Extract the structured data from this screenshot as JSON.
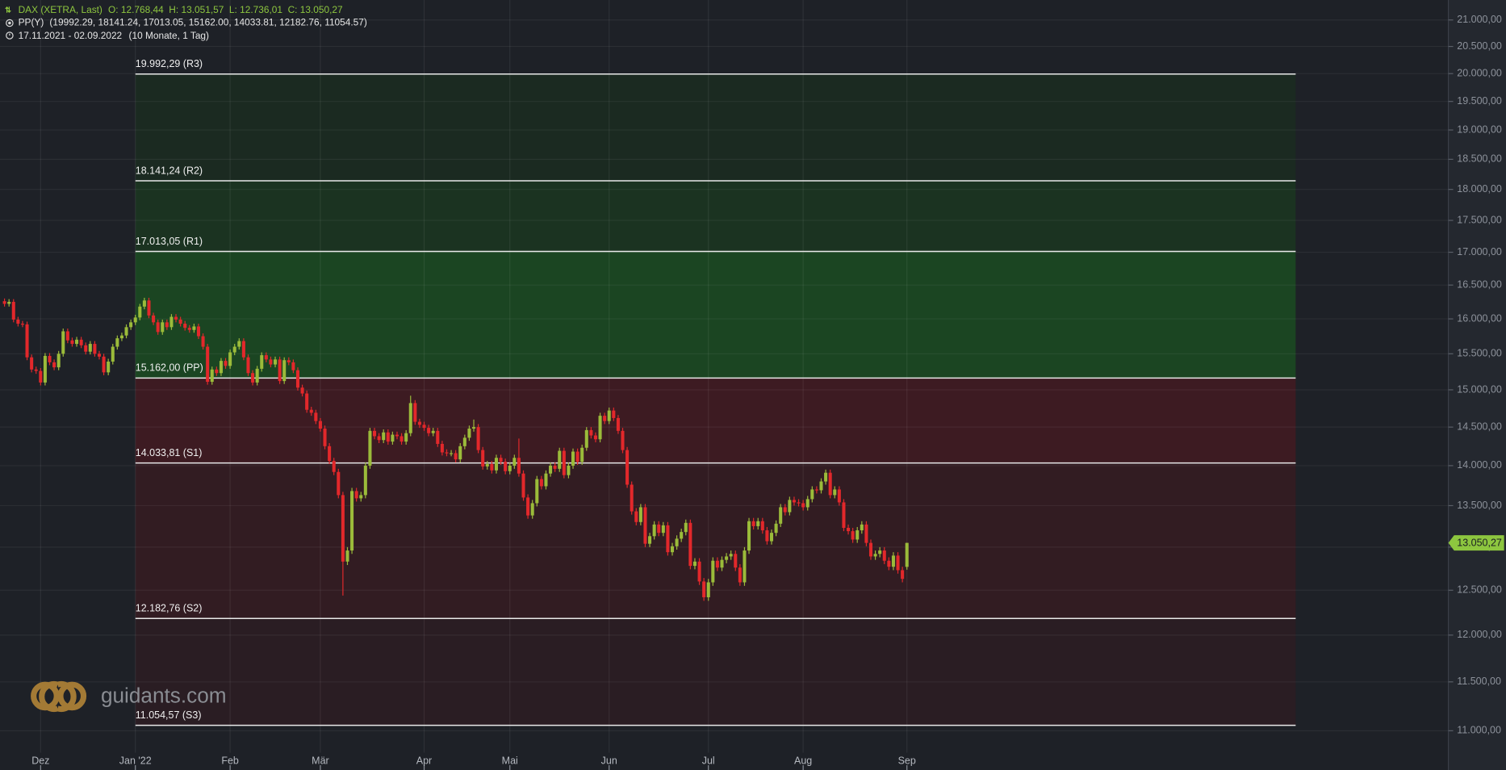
{
  "chart_data": {
    "type": "candlestick",
    "title": "DAX (XETRA, Last)",
    "ohlc_summary": "O: 12.768,44  H: 13.051,57  L: 12.736,01  C: 13.050,27",
    "indicator": "PP(Y)",
    "indicator_values": "(19992.29, 18141.24, 17013.05, 15162.00, 14033.81, 12182.76, 11054.57)",
    "period": "17.11.2021 - 02.09.2022",
    "period_note": "(10 Monate, 1 Tag)",
    "watermark": "guidants.com",
    "log_scale": true,
    "grid": true,
    "up_color": "#9bbb3a",
    "down_color": "#e2282b",
    "xlim": [
      -1,
      320
    ],
    "xticks": [
      {
        "value": 8,
        "label": "Dez"
      },
      {
        "value": 29,
        "label": "Jan '22"
      },
      {
        "value": 50,
        "label": "Feb"
      },
      {
        "value": 70,
        "label": "Mär"
      },
      {
        "value": 93,
        "label": "Apr"
      },
      {
        "value": 112,
        "label": "Mai"
      },
      {
        "value": 134,
        "label": "Jun"
      },
      {
        "value": 156,
        "label": "Jul"
      },
      {
        "value": 177,
        "label": "Aug"
      },
      {
        "value": 200,
        "label": "Sep"
      }
    ],
    "ylim": [
      10820,
      21385
    ],
    "yticks": [
      {
        "value": 11000,
        "label": "11.000,00"
      },
      {
        "value": 11500,
        "label": "11.500,00"
      },
      {
        "value": 12000,
        "label": "12.000,00"
      },
      {
        "value": 12500,
        "label": "12.500,00"
      },
      {
        "value": 13000,
        "label": "13.000,00"
      },
      {
        "value": 13500,
        "label": "13.500,00"
      },
      {
        "value": 14000,
        "label": "14.000,00"
      },
      {
        "value": 14500,
        "label": "14.500,00"
      },
      {
        "value": 15000,
        "label": "15.000,00"
      },
      {
        "value": 15500,
        "label": "15.500,00"
      },
      {
        "value": 16000,
        "label": "16.000,00"
      },
      {
        "value": 16500,
        "label": "16.500,00"
      },
      {
        "value": 17000,
        "label": "17.000,00"
      },
      {
        "value": 17500,
        "label": "17.500,00"
      },
      {
        "value": 18000,
        "label": "18.000,00"
      },
      {
        "value": 18500,
        "label": "18.500,00"
      },
      {
        "value": 19000,
        "label": "19.000,00"
      },
      {
        "value": 19500,
        "label": "19.500,00"
      },
      {
        "value": 20000,
        "label": "20.000,00"
      },
      {
        "value": 20500,
        "label": "20.500,00"
      },
      {
        "value": 21000,
        "label": "21.000,00"
      }
    ],
    "pivots": [
      {
        "value": 19992.29,
        "label": "19.992,29 (R3)"
      },
      {
        "value": 18141.24,
        "label": "18.141,24 (R2)"
      },
      {
        "value": 17013.05,
        "label": "17.013,05 (R1)"
      },
      {
        "value": 15162.0,
        "label": "15.162,00 (PP)"
      },
      {
        "value": 14033.81,
        "label": "14.033,81 (S1)"
      },
      {
        "value": 12182.76,
        "label": "12.182,76 (S2)"
      },
      {
        "value": 11054.57,
        "label": "11.054,57 (S3)"
      }
    ],
    "zone_colors": [
      "#1b2a21",
      "#1b3321",
      "#1b4522",
      "#3d1b22",
      "#321c22",
      "#2a1d23"
    ],
    "last_price": {
      "value": 13050.27,
      "label": "13.050,27"
    },
    "last_price_color": "#8dc63f",
    "ohlc": [
      [
        16260,
        16300,
        16180,
        16220
      ],
      [
        16220,
        16290,
        16180,
        16250
      ],
      [
        16250,
        16290,
        15950,
        15990
      ],
      [
        15990,
        16030,
        15890,
        15930
      ],
      [
        15930,
        15970,
        15880,
        15920
      ],
      [
        15920,
        15960,
        15410,
        15450
      ],
      [
        15450,
        15490,
        15240,
        15280
      ],
      [
        15280,
        15320,
        15220,
        15260
      ],
      [
        15260,
        15300,
        15060,
        15100
      ],
      [
        15100,
        15510,
        15060,
        15470
      ],
      [
        15470,
        15510,
        15340,
        15380
      ],
      [
        15380,
        15420,
        15270,
        15310
      ],
      [
        15310,
        15540,
        15270,
        15500
      ],
      [
        15500,
        15860,
        15460,
        15820
      ],
      [
        15820,
        15860,
        15650,
        15690
      ],
      [
        15690,
        15730,
        15600,
        15640
      ],
      [
        15640,
        15740,
        15600,
        15700
      ],
      [
        15700,
        15740,
        15580,
        15620
      ],
      [
        15620,
        15660,
        15490,
        15530
      ],
      [
        15530,
        15680,
        15490,
        15640
      ],
      [
        15640,
        15680,
        15460,
        15500
      ],
      [
        15500,
        15540,
        15420,
        15460
      ],
      [
        15460,
        15500,
        15200,
        15240
      ],
      [
        15240,
        15430,
        15200,
        15390
      ],
      [
        15390,
        15640,
        15350,
        15600
      ],
      [
        15600,
        15760,
        15560,
        15720
      ],
      [
        15720,
        15800,
        15680,
        15760
      ],
      [
        15760,
        15920,
        15720,
        15880
      ],
      [
        15880,
        15990,
        15840,
        15950
      ],
      [
        15950,
        16060,
        15910,
        16020
      ],
      [
        16020,
        16220,
        15980,
        16180
      ],
      [
        16180,
        16310,
        16140,
        16270
      ],
      [
        16270,
        16310,
        16010,
        16050
      ],
      [
        16050,
        16090,
        15910,
        15950
      ],
      [
        15950,
        15990,
        15770,
        15810
      ],
      [
        15810,
        15990,
        15770,
        15950
      ],
      [
        15950,
        15990,
        15840,
        15880
      ],
      [
        15880,
        16070,
        15840,
        16030
      ],
      [
        16030,
        16070,
        15950,
        15990
      ],
      [
        15990,
        16030,
        15890,
        15930
      ],
      [
        15930,
        15970,
        15830,
        15870
      ],
      [
        15870,
        15910,
        15800,
        15840
      ],
      [
        15840,
        15930,
        15800,
        15890
      ],
      [
        15890,
        15930,
        15710,
        15750
      ],
      [
        15750,
        15790,
        15560,
        15600
      ],
      [
        15600,
        15640,
        15070,
        15110
      ],
      [
        15110,
        15320,
        15070,
        15280
      ],
      [
        15280,
        15320,
        15190,
        15230
      ],
      [
        15230,
        15440,
        15190,
        15400
      ],
      [
        15400,
        15440,
        15290,
        15330
      ],
      [
        15330,
        15560,
        15290,
        15520
      ],
      [
        15520,
        15640,
        15480,
        15600
      ],
      [
        15600,
        15720,
        15560,
        15680
      ],
      [
        15680,
        15720,
        15410,
        15450
      ],
      [
        15450,
        15490,
        15190,
        15230
      ],
      [
        15230,
        15270,
        15060,
        15100
      ],
      [
        15100,
        15330,
        15060,
        15290
      ],
      [
        15290,
        15520,
        15250,
        15480
      ],
      [
        15480,
        15520,
        15380,
        15420
      ],
      [
        15420,
        15460,
        15310,
        15350
      ],
      [
        15350,
        15460,
        15310,
        15420
      ],
      [
        15420,
        15460,
        15080,
        15120
      ],
      [
        15120,
        15450,
        15080,
        15410
      ],
      [
        15410,
        15450,
        15340,
        15380
      ],
      [
        15380,
        15420,
        15230,
        15270
      ],
      [
        15270,
        15310,
        14990,
        15030
      ],
      [
        15030,
        15070,
        14910,
        14950
      ],
      [
        14950,
        14990,
        14690,
        14730
      ],
      [
        14730,
        14770,
        14650,
        14690
      ],
      [
        14690,
        14730,
        14540,
        14580
      ],
      [
        14580,
        14620,
        14440,
        14480
      ],
      [
        14480,
        14520,
        14210,
        14250
      ],
      [
        14250,
        14290,
        14020,
        14060
      ],
      [
        14060,
        14100,
        13880,
        13920
      ],
      [
        13920,
        13960,
        13590,
        13630
      ],
      [
        13630,
        13670,
        12440,
        12830
      ],
      [
        12830,
        13000,
        12790,
        12960
      ],
      [
        12960,
        13720,
        12920,
        13680
      ],
      [
        13680,
        13720,
        13550,
        13590
      ],
      [
        13590,
        13670,
        13550,
        13630
      ],
      [
        13630,
        14040,
        13590,
        14000
      ],
      [
        14000,
        14490,
        13960,
        14450
      ],
      [
        14450,
        14490,
        14340,
        14380
      ],
      [
        14380,
        14420,
        14290,
        14330
      ],
      [
        14330,
        14470,
        14290,
        14430
      ],
      [
        14430,
        14470,
        14270,
        14310
      ],
      [
        14310,
        14440,
        14270,
        14400
      ],
      [
        14400,
        14440,
        14340,
        14380
      ],
      [
        14380,
        14420,
        14270,
        14310
      ],
      [
        14310,
        14460,
        14270,
        14420
      ],
      [
        14420,
        14920,
        14380,
        14820
      ],
      [
        14820,
        14860,
        14530,
        14570
      ],
      [
        14570,
        14610,
        14490,
        14530
      ],
      [
        14530,
        14570,
        14450,
        14490
      ],
      [
        14490,
        14530,
        14380,
        14420
      ],
      [
        14420,
        14490,
        14380,
        14450
      ],
      [
        14450,
        14490,
        14240,
        14280
      ],
      [
        14280,
        14320,
        14130,
        14170
      ],
      [
        14170,
        14210,
        14120,
        14160
      ],
      [
        14160,
        14200,
        14120,
        14160
      ],
      [
        14160,
        14200,
        14040,
        14080
      ],
      [
        14080,
        14290,
        14040,
        14250
      ],
      [
        14250,
        14400,
        14210,
        14360
      ],
      [
        14360,
        14520,
        14320,
        14480
      ],
      [
        14480,
        14600,
        14440,
        14500
      ],
      [
        14500,
        14540,
        14160,
        14200
      ],
      [
        14200,
        14240,
        13950,
        13990
      ],
      [
        13990,
        14060,
        13950,
        14020
      ],
      [
        14020,
        14060,
        13900,
        13940
      ],
      [
        13940,
        14140,
        13900,
        14100
      ],
      [
        14100,
        14140,
        14010,
        14050
      ],
      [
        14050,
        14090,
        13890,
        13930
      ],
      [
        13930,
        14040,
        13890,
        14000
      ],
      [
        14000,
        14140,
        13960,
        14100
      ],
      [
        14100,
        14350,
        13860,
        13900
      ],
      [
        13900,
        13940,
        13560,
        13600
      ],
      [
        13600,
        13640,
        13340,
        13380
      ],
      [
        13380,
        13570,
        13340,
        13530
      ],
      [
        13530,
        13870,
        13490,
        13830
      ],
      [
        13830,
        13870,
        13700,
        13740
      ],
      [
        13740,
        13940,
        13700,
        13900
      ],
      [
        13900,
        14040,
        13860,
        14000
      ],
      [
        14000,
        14040,
        13920,
        13960
      ],
      [
        13960,
        14230,
        13920,
        14190
      ],
      [
        14190,
        14230,
        13840,
        13880
      ],
      [
        13880,
        14040,
        13840,
        14000
      ],
      [
        14000,
        14220,
        13960,
        14180
      ],
      [
        14180,
        14220,
        14010,
        14050
      ],
      [
        14050,
        14270,
        14010,
        14230
      ],
      [
        14230,
        14500,
        14190,
        14460
      ],
      [
        14460,
        14500,
        14350,
        14390
      ],
      [
        14390,
        14430,
        14300,
        14340
      ],
      [
        14340,
        14690,
        14300,
        14650
      ],
      [
        14650,
        14690,
        14540,
        14580
      ],
      [
        14580,
        14760,
        14540,
        14720
      ],
      [
        14720,
        14760,
        14580,
        14620
      ],
      [
        14620,
        14660,
        14410,
        14450
      ],
      [
        14450,
        14490,
        14160,
        14200
      ],
      [
        14200,
        14240,
        13720,
        13760
      ],
      [
        13760,
        13800,
        13390,
        13430
      ],
      [
        13430,
        13470,
        13260,
        13300
      ],
      [
        13300,
        13520,
        13260,
        13480
      ],
      [
        13480,
        13520,
        13000,
        13040
      ],
      [
        13040,
        13170,
        13000,
        13130
      ],
      [
        13130,
        13310,
        13090,
        13270
      ],
      [
        13270,
        13310,
        13130,
        13170
      ],
      [
        13170,
        13300,
        13130,
        13260
      ],
      [
        13260,
        13300,
        12900,
        12940
      ],
      [
        12940,
        13050,
        12900,
        13010
      ],
      [
        13010,
        13140,
        12970,
        13100
      ],
      [
        13100,
        13220,
        13060,
        13180
      ],
      [
        13180,
        13330,
        13140,
        13290
      ],
      [
        13290,
        13330,
        12740,
        12780
      ],
      [
        12780,
        12870,
        12740,
        12830
      ],
      [
        12830,
        12870,
        12560,
        12600
      ],
      [
        12600,
        12640,
        12380,
        12420
      ],
      [
        12420,
        12630,
        12380,
        12590
      ],
      [
        12590,
        12880,
        12550,
        12840
      ],
      [
        12840,
        12880,
        12720,
        12760
      ],
      [
        12760,
        12890,
        12720,
        12850
      ],
      [
        12850,
        12930,
        12810,
        12890
      ],
      [
        12890,
        12960,
        12850,
        12920
      ],
      [
        12920,
        12960,
        12720,
        12760
      ],
      [
        12760,
        12800,
        12550,
        12590
      ],
      [
        12590,
        13000,
        12550,
        12960
      ],
      [
        12960,
        13350,
        12920,
        13310
      ],
      [
        13310,
        13350,
        13210,
        13250
      ],
      [
        13250,
        13350,
        13210,
        13310
      ],
      [
        13310,
        13350,
        13160,
        13200
      ],
      [
        13200,
        13240,
        13030,
        13070
      ],
      [
        13070,
        13210,
        13030,
        13170
      ],
      [
        13170,
        13320,
        13130,
        13280
      ],
      [
        13280,
        13520,
        13240,
        13480
      ],
      [
        13480,
        13520,
        13380,
        13420
      ],
      [
        13420,
        13610,
        13380,
        13570
      ],
      [
        13570,
        13610,
        13500,
        13540
      ],
      [
        13540,
        13580,
        13490,
        13530
      ],
      [
        13530,
        13570,
        13440,
        13480
      ],
      [
        13480,
        13620,
        13440,
        13580
      ],
      [
        13580,
        13740,
        13540,
        13700
      ],
      [
        13700,
        13740,
        13650,
        13690
      ],
      [
        13690,
        13840,
        13650,
        13800
      ],
      [
        13800,
        13950,
        13760,
        13910
      ],
      [
        13910,
        13950,
        13590,
        13630
      ],
      [
        13630,
        13740,
        13590,
        13700
      ],
      [
        13700,
        13740,
        13500,
        13540
      ],
      [
        13540,
        13580,
        13190,
        13230
      ],
      [
        13230,
        13270,
        13150,
        13190
      ],
      [
        13190,
        13230,
        13050,
        13090
      ],
      [
        13090,
        13240,
        13050,
        13200
      ],
      [
        13200,
        13310,
        13160,
        13270
      ],
      [
        13270,
        13310,
        13010,
        13050
      ],
      [
        13050,
        13090,
        12850,
        12890
      ],
      [
        12890,
        12960,
        12850,
        12920
      ],
      [
        12920,
        13000,
        12880,
        12960
      ],
      [
        12960,
        13000,
        12800,
        12840
      ],
      [
        12840,
        12880,
        12730,
        12770
      ],
      [
        12770,
        12940,
        12730,
        12900
      ],
      [
        12900,
        12940,
        12690,
        12730
      ],
      [
        12730,
        12770,
        12590,
        12630
      ],
      [
        12768.44,
        13051.57,
        12736.01,
        13050.27
      ]
    ]
  }
}
